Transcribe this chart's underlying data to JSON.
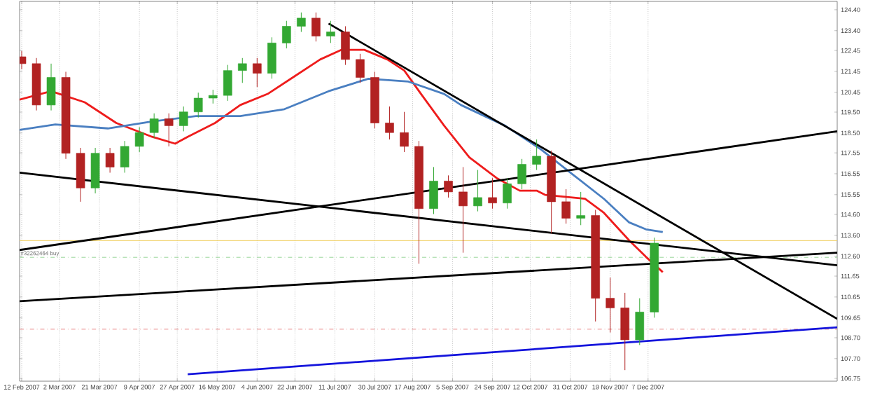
{
  "chart_data": {
    "type": "candlestick",
    "xlim": [
      "2007-02-11",
      "2008-03-06"
    ],
    "ylim": [
      106.62,
      124.8
    ],
    "xticks": [
      {
        "value": "2007-02-12",
        "label": "12 Feb 2007"
      },
      {
        "value": "2007-03-02",
        "label": "2 Mar 2007"
      },
      {
        "value": "2007-03-21",
        "label": "21 Mar 2007"
      },
      {
        "value": "2007-04-09",
        "label": "9 Apr 2007"
      },
      {
        "value": "2007-04-27",
        "label": "27 Apr 2007"
      },
      {
        "value": "2007-05-16",
        "label": "16 May 2007"
      },
      {
        "value": "2007-06-04",
        "label": "4 Jun 2007"
      },
      {
        "value": "2007-06-22",
        "label": "22 Jun 2007"
      },
      {
        "value": "2007-07-11",
        "label": "11 Jul 2007"
      },
      {
        "value": "2007-07-30",
        "label": "30 Jul 2007"
      },
      {
        "value": "2007-08-17",
        "label": "17 Aug 2007"
      },
      {
        "value": "2007-09-05",
        "label": "5 Sep 2007"
      },
      {
        "value": "2007-09-24",
        "label": "24 Sep 2007"
      },
      {
        "value": "2007-10-12",
        "label": "12 Oct 2007"
      },
      {
        "value": "2007-10-31",
        "label": "31 Oct 2007"
      },
      {
        "value": "2007-11-19",
        "label": "19 Nov 2007"
      },
      {
        "value": "2007-12-07",
        "label": "7 Dec 2007"
      }
    ],
    "yticks": [
      {
        "value": 124.4,
        "label": "124.40"
      },
      {
        "value": 123.4,
        "label": "123.40"
      },
      {
        "value": 122.45,
        "label": "122.45"
      },
      {
        "value": 121.45,
        "label": "121.45"
      },
      {
        "value": 120.45,
        "label": "120.45"
      },
      {
        "value": 119.5,
        "label": "119.50"
      },
      {
        "value": 118.5,
        "label": "118.50"
      },
      {
        "value": 117.55,
        "label": "117.55"
      },
      {
        "value": 116.55,
        "label": "116.55"
      },
      {
        "value": 115.55,
        "label": "115.55"
      },
      {
        "value": 114.6,
        "label": "114.60"
      },
      {
        "value": 113.6,
        "label": "113.60"
      },
      {
        "value": 112.6,
        "label": "112.60"
      },
      {
        "value": 111.65,
        "label": "111.65"
      },
      {
        "value": 110.65,
        "label": "110.65"
      },
      {
        "value": 109.65,
        "label": "109.65"
      },
      {
        "value": 108.7,
        "label": "108.70"
      },
      {
        "value": 107.7,
        "label": "107.70"
      },
      {
        "value": 106.75,
        "label": "106.75"
      }
    ],
    "grid": "x",
    "ref_lines": [
      {
        "axis": "y",
        "value": 113.35,
        "color": "#f0d060",
        "line_style": "solid"
      },
      {
        "axis": "y",
        "value": 112.55,
        "label": "#32262464 buy",
        "color": "#99d699",
        "line_style": "dashed"
      },
      {
        "axis": "y",
        "value": 109.11,
        "color": "#e88080",
        "line_style": "dashed"
      }
    ],
    "series": [
      {
        "type": "candlestick",
        "x": [
          "2007-02-12",
          "2007-02-19",
          "2007-02-26",
          "2007-03-05",
          "2007-03-12",
          "2007-03-19",
          "2007-03-26",
          "2007-04-02",
          "2007-04-09",
          "2007-04-16",
          "2007-04-23",
          "2007-04-30",
          "2007-05-07",
          "2007-05-14",
          "2007-05-21",
          "2007-05-28",
          "2007-06-04",
          "2007-06-11",
          "2007-06-18",
          "2007-06-25",
          "2007-07-02",
          "2007-07-09",
          "2007-07-16",
          "2007-07-23",
          "2007-07-30",
          "2007-08-06",
          "2007-08-13",
          "2007-08-20",
          "2007-08-27",
          "2007-09-03",
          "2007-09-10",
          "2007-09-17",
          "2007-09-24",
          "2007-10-01",
          "2007-10-08",
          "2007-10-15",
          "2007-10-22",
          "2007-10-29",
          "2007-11-05",
          "2007-11-12",
          "2007-11-19",
          "2007-11-26",
          "2007-12-03",
          "2007-12-10"
        ],
        "ohlc": [
          [
            122.15,
            122.42,
            121.56,
            121.82
          ],
          [
            121.82,
            122.09,
            119.58,
            119.84
          ],
          [
            119.84,
            121.82,
            119.58,
            121.16
          ],
          [
            121.16,
            121.43,
            117.26,
            117.53
          ],
          [
            117.53,
            117.79,
            115.21,
            115.87
          ],
          [
            115.87,
            117.79,
            115.61,
            117.53
          ],
          [
            117.53,
            117.79,
            116.6,
            116.87
          ],
          [
            116.87,
            118.12,
            116.6,
            117.86
          ],
          [
            117.86,
            118.78,
            117.59,
            118.52
          ],
          [
            118.52,
            119.44,
            118.25,
            119.18
          ],
          [
            119.18,
            119.44,
            117.86,
            118.85
          ],
          [
            118.85,
            119.77,
            118.58,
            119.51
          ],
          [
            119.51,
            120.43,
            119.24,
            120.17
          ],
          [
            120.17,
            120.57,
            119.91,
            120.3
          ],
          [
            120.3,
            121.76,
            120.04,
            121.49
          ],
          [
            121.49,
            122.09,
            120.9,
            121.82
          ],
          [
            121.82,
            122.09,
            120.7,
            121.36
          ],
          [
            121.36,
            123.08,
            121.1,
            122.81
          ],
          [
            122.81,
            123.87,
            122.55,
            123.61
          ],
          [
            123.61,
            124.27,
            123.34,
            124.0
          ],
          [
            124.0,
            124.27,
            122.88,
            123.14
          ],
          [
            123.14,
            123.87,
            122.81,
            123.34
          ],
          [
            123.34,
            123.61,
            121.76,
            122.02
          ],
          [
            122.02,
            122.29,
            120.9,
            121.16
          ],
          [
            121.16,
            121.43,
            118.72,
            118.98
          ],
          [
            118.98,
            119.77,
            118.19,
            118.52
          ],
          [
            118.52,
            119.51,
            117.59,
            117.86
          ],
          [
            117.86,
            118.12,
            112.24,
            114.88
          ],
          [
            114.88,
            116.87,
            114.62,
            116.2
          ],
          [
            116.2,
            116.47,
            115.41,
            115.68
          ],
          [
            115.68,
            116.87,
            112.77,
            115.01
          ],
          [
            115.01,
            116.73,
            114.75,
            115.41
          ],
          [
            115.41,
            116.34,
            114.88,
            115.15
          ],
          [
            115.15,
            116.34,
            114.88,
            116.07
          ],
          [
            116.07,
            117.26,
            115.81,
            117.0
          ],
          [
            117.0,
            118.19,
            116.73,
            117.39
          ],
          [
            117.39,
            117.66,
            113.69,
            115.21
          ],
          [
            115.21,
            115.81,
            114.16,
            114.42
          ],
          [
            114.42,
            115.68,
            114.09,
            114.55
          ],
          [
            114.55,
            114.82,
            109.48,
            110.59
          ],
          [
            110.59,
            111.58,
            108.95,
            110.13
          ],
          [
            110.13,
            110.85,
            107.15,
            108.6
          ],
          [
            108.6,
            110.59,
            108.35,
            109.93
          ],
          [
            109.93,
            113.49,
            109.66,
            113.23
          ]
        ],
        "colors": [
          "#b22222",
          "#b22222",
          "#33a833",
          "#b22222",
          "#b22222",
          "#33a833",
          "#b22222",
          "#33a833",
          "#33a833",
          "#33a833",
          "#b22222",
          "#33a833",
          "#33a833",
          "#33a833",
          "#33a833",
          "#33a833",
          "#b22222",
          "#33a833",
          "#33a833",
          "#33a833",
          "#b22222",
          "#33a833",
          "#b22222",
          "#b22222",
          "#b22222",
          "#b22222",
          "#b22222",
          "#b22222",
          "#33a833",
          "#b22222",
          "#b22222",
          "#33a833",
          "#b22222",
          "#33a833",
          "#33a833",
          "#33a833",
          "#b22222",
          "#b22222",
          "#33a833",
          "#b22222",
          "#b22222",
          "#b22222",
          "#33a833",
          "#33a833"
        ]
      },
      {
        "type": "line",
        "color": "#ee1c1c",
        "x": [
          "2007-02-11",
          "2007-02-26",
          "2007-03-14",
          "2007-03-29",
          "2007-04-15",
          "2007-04-26",
          "2007-05-02",
          "2007-05-15",
          "2007-05-27",
          "2007-06-09",
          "2007-06-21",
          "2007-07-04",
          "2007-07-14",
          "2007-07-25",
          "2007-08-05",
          "2007-08-13",
          "2007-08-21",
          "2007-09-01",
          "2007-09-13",
          "2007-09-26",
          "2007-10-07",
          "2007-10-15",
          "2007-10-19",
          "2007-11-01",
          "2007-11-07",
          "2007-11-16",
          "2007-11-28",
          "2007-12-06",
          "2007-12-14"
        ],
        "values": [
          120.1,
          120.5,
          119.97,
          118.98,
          118.32,
          117.99,
          118.32,
          118.98,
          119.84,
          120.37,
          121.16,
          122.02,
          122.48,
          122.48,
          122.02,
          121.49,
          120.37,
          118.85,
          117.33,
          116.34,
          115.74,
          115.74,
          115.54,
          115.41,
          115.35,
          114.68,
          113.36,
          112.57,
          111.84
        ]
      },
      {
        "type": "line",
        "color": "#4a7fc1",
        "x": [
          "2007-02-11",
          "2007-02-28",
          "2007-03-25",
          "2007-04-15",
          "2007-05-06",
          "2007-05-27",
          "2007-06-17",
          "2007-07-08",
          "2007-07-27",
          "2007-08-15",
          "2007-09-01",
          "2007-09-09",
          "2007-09-30",
          "2007-10-17",
          "2007-11-01",
          "2007-11-16",
          "2007-11-28",
          "2007-12-06",
          "2007-12-14"
        ],
        "values": [
          118.65,
          118.91,
          118.72,
          119.05,
          119.31,
          119.31,
          119.64,
          120.5,
          121.1,
          120.96,
          120.37,
          119.84,
          118.85,
          117.72,
          116.53,
          115.35,
          114.22,
          113.89,
          113.76
        ]
      },
      {
        "type": "line",
        "color": "#000000",
        "x": [
          "2007-07-08",
          "2008-03-06"
        ],
        "values": [
          123.74,
          109.6
        ]
      },
      {
        "type": "line",
        "color": "#000000",
        "x": [
          "2007-02-11",
          "2008-03-06"
        ],
        "values": [
          116.6,
          112.17
        ]
      },
      {
        "type": "line",
        "color": "#000000",
        "x": [
          "2007-02-11",
          "2008-03-06"
        ],
        "values": [
          112.9,
          118.58
        ]
      },
      {
        "type": "line",
        "color": "#000000",
        "x": [
          "2007-02-11",
          "2008-03-06"
        ],
        "values": [
          110.45,
          112.77
        ]
      },
      {
        "type": "line",
        "color": "#1414dc",
        "x": [
          "2007-05-02",
          "2008-03-06"
        ],
        "values": [
          106.95,
          109.2
        ]
      }
    ]
  }
}
